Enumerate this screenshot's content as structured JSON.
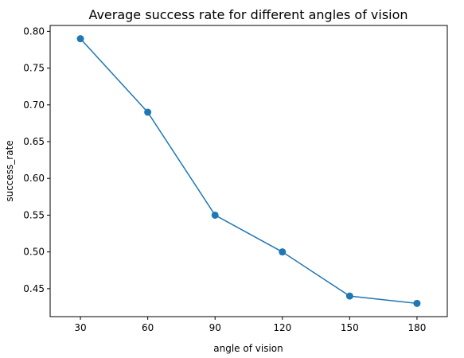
{
  "chart_data": {
    "type": "line",
    "title": "Average success rate for different angles of vision",
    "xlabel": "angle of vision",
    "ylabel": "success_rate",
    "x": [
      30,
      60,
      90,
      120,
      150,
      180
    ],
    "series": [
      {
        "values": [
          0.79,
          0.69,
          0.55,
          0.5,
          0.44,
          0.43
        ]
      }
    ],
    "xlim": [
      16.5,
      193.5
    ],
    "ylim": [
      0.412,
      0.808
    ],
    "x_ticks": [
      30,
      60,
      90,
      120,
      150,
      180
    ],
    "x_tick_labels": [
      "30",
      "60",
      "90",
      "120",
      "150",
      "180"
    ],
    "y_ticks": [
      0.45,
      0.5,
      0.55,
      0.6,
      0.65,
      0.7,
      0.75,
      0.8
    ],
    "y_tick_labels": [
      "0.45",
      "0.50",
      "0.55",
      "0.60",
      "0.65",
      "0.70",
      "0.75",
      "0.80"
    ],
    "grid": false,
    "marker": "circle",
    "colors": {
      "series": "#1f77b4",
      "axes": "#000000",
      "background": "#ffffff"
    }
  }
}
